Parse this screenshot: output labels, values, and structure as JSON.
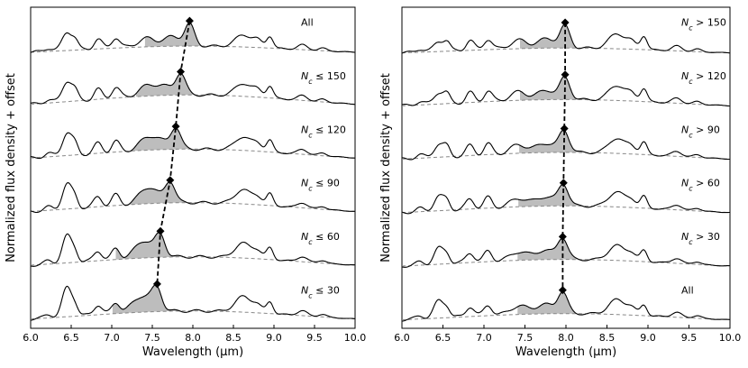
{
  "chart_data": [
    {
      "type": "line",
      "panel": "left",
      "xlabel": "Wavelength (μm)",
      "ylabel": "Normalized flux density + offset",
      "xlim": [
        6.0,
        10.0
      ],
      "xticks": [
        "6.0",
        "6.5",
        "7.0",
        "7.5",
        "8.0",
        "8.5",
        "9.0",
        "9.5",
        "10.0"
      ],
      "series": [
        {
          "label_prefix": "",
          "label_suffix": "All",
          "peak": 7.96,
          "cont": 0.28
        },
        {
          "label_prefix": "N",
          "label_sub": "c",
          "label_suffix": " ≤ 150",
          "peak": 7.85,
          "cont": 0.42
        },
        {
          "label_prefix": "N",
          "label_sub": "c",
          "label_suffix": " ≤ 120",
          "peak": 7.79,
          "cont": 0.4
        },
        {
          "label_prefix": "N",
          "label_sub": "c",
          "label_suffix": " ≤ 90",
          "peak": 7.72,
          "cont": 0.4
        },
        {
          "label_prefix": "N",
          "label_sub": "c",
          "label_suffix": " ≤ 60",
          "peak": 7.6,
          "cont": 0.38
        },
        {
          "label_prefix": "N",
          "label_sub": "c",
          "label_suffix": " ≤ 30",
          "peak": 7.56,
          "cont": 0.36
        }
      ]
    },
    {
      "type": "line",
      "panel": "right",
      "xlabel": "Wavelength (μm)",
      "ylabel": "Normalized flux density + offset",
      "xlim": [
        6.0,
        10.0
      ],
      "xticks": [
        "6.0",
        "6.5",
        "7.0",
        "7.5",
        "8.0",
        "8.5",
        "9.0",
        "9.5",
        "10.0"
      ],
      "series": [
        {
          "label_prefix": "N",
          "label_sub": "c",
          "label_suffix": " > 150",
          "peak": 7.99,
          "cont": 0.22
        },
        {
          "label_prefix": "N",
          "label_sub": "c",
          "label_suffix": " > 120",
          "peak": 7.99,
          "cont": 0.28
        },
        {
          "label_prefix": "N",
          "label_sub": "c",
          "label_suffix": " > 90",
          "peak": 7.98,
          "cont": 0.3
        },
        {
          "label_prefix": "N",
          "label_sub": "c",
          "label_suffix": " > 60",
          "peak": 7.97,
          "cont": 0.3
        },
        {
          "label_prefix": "N",
          "label_sub": "c",
          "label_suffix": " > 30",
          "peak": 7.96,
          "cont": 0.3
        },
        {
          "label_prefix": "",
          "label_suffix": "All",
          "peak": 7.96,
          "cont": 0.28
        }
      ]
    }
  ]
}
